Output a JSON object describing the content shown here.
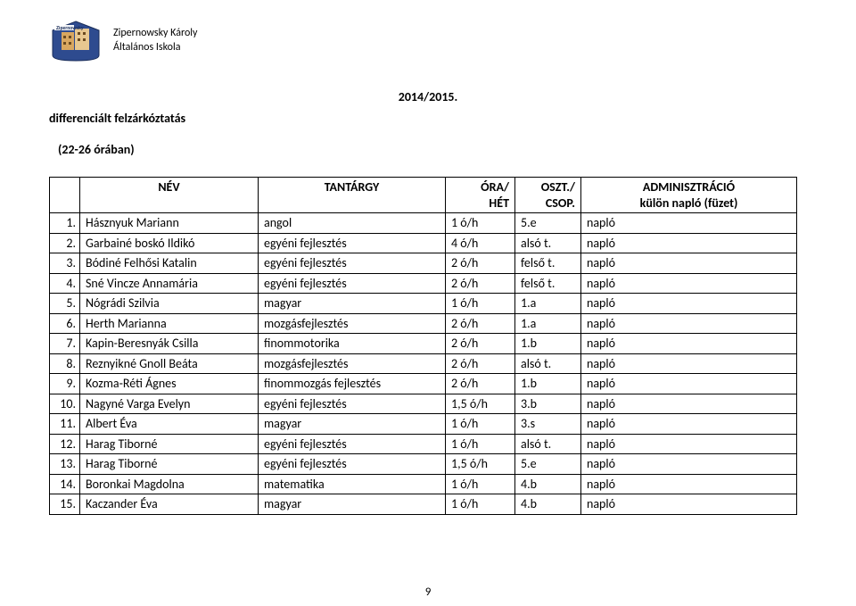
{
  "school_name_line1": "Zipernowsky Károly",
  "school_name_line2": "Általános Iskola",
  "academic_year": "2014/2015.",
  "subtitle": "differenciált felzárkóztatás",
  "hours_note": "(22-26 órában)",
  "page_number": "9",
  "columns": {
    "nev": "NÉV",
    "tantargy": "TANTÁRGY",
    "ora_l1": "ÓRA/",
    "ora_l2": "HÉT",
    "oszt_l1": "OSZT./",
    "oszt_l2": "CSOP.",
    "admin_l1": "ADMINISZTRÁCIÓ",
    "admin_l2": "külön napló (füzet)"
  },
  "rows": [
    {
      "n": "1.",
      "name": "Hásznyuk Mariann",
      "subj": "angol",
      "ora": "1 ó/h",
      "oszt": "5.e",
      "admin": "napló"
    },
    {
      "n": "2.",
      "name": "Garbainé boskó Ildikó",
      "subj": "egyéni fejlesztés",
      "ora": "4 ó/h",
      "oszt": "alsó t.",
      "admin": "napló"
    },
    {
      "n": "3.",
      "name": "Bódiné Felhősi Katalin",
      "subj": "egyéni fejlesztés",
      "ora": "2 ó/h",
      "oszt": "felső t.",
      "admin": "napló"
    },
    {
      "n": "4.",
      "name": "Sné Vincze Annamária",
      "subj": "egyéni fejlesztés",
      "ora": "2 ó/h",
      "oszt": "felső t.",
      "admin": "napló"
    },
    {
      "n": "5.",
      "name": "Nógrádi Szilvia",
      "subj": "magyar",
      "ora": "1 ó/h",
      "oszt": "1.a",
      "admin": "napló"
    },
    {
      "n": "6.",
      "name": "Herth Marianna",
      "subj": "mozgásfejlesztés",
      "ora": "2 ó/h",
      "oszt": "1.a",
      "admin": "napló"
    },
    {
      "n": "7.",
      "name": "Kapin-Beresnyák Csilla",
      "subj": "finommotorika",
      "ora": "2 ó/h",
      "oszt": "1.b",
      "admin": "napló"
    },
    {
      "n": "8.",
      "name": "Reznyikné Gnoll Beáta",
      "subj": "mozgásfejlesztés",
      "ora": "2 ó/h",
      "oszt": "alsó t.",
      "admin": "napló"
    },
    {
      "n": "9.",
      "name": "Kozma-Réti Ágnes",
      "subj": "finommozgás fejlesztés",
      "ora": "2 ó/h",
      "oszt": "1.b",
      "admin": "napló"
    },
    {
      "n": "10.",
      "name": "Nagyné Varga Evelyn",
      "subj": "egyéni fejlesztés",
      "ora": "1,5 ó/h",
      "oszt": "3.b",
      "admin": "napló"
    },
    {
      "n": "11.",
      "name": "Albert Éva",
      "subj": "magyar",
      "ora": "1 ó/h",
      "oszt": "3.s",
      "admin": "napló"
    },
    {
      "n": "12.",
      "name": "Harag Tiborné",
      "subj": "egyéni fejlesztés",
      "ora": "1 ó/h",
      "oszt": "alsó t.",
      "admin": "napló"
    },
    {
      "n": "13.",
      "name": "Harag Tiborné",
      "subj": "egyéni fejlesztés",
      "ora": "1,5 ó/h",
      "oszt": "5.e",
      "admin": "napló"
    },
    {
      "n": "14.",
      "name": "Boronkai Magdolna",
      "subj": "matematika",
      "ora": "1 ó/h",
      "oszt": "4.b",
      "admin": "napló"
    },
    {
      "n": "15.",
      "name": "Kaczander Éva",
      "subj": "magyar",
      "ora": "1 ó/h",
      "oszt": "4.b",
      "admin": "napló"
    }
  ]
}
